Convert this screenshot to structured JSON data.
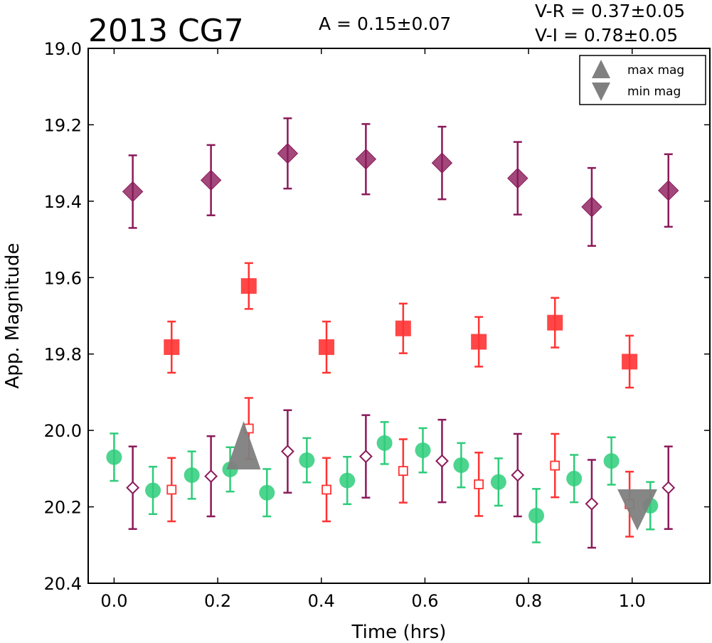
{
  "title": "2013 CG7",
  "amplitude_text": "A  = 0.15±0.07",
  "color_vr_text": "V-R = 0.37±0.05",
  "color_vi_text": "V-I  = 0.78±0.05",
  "chart_data": {
    "type": "scatter",
    "title": "2013 CG7",
    "xlabel": "Time (hrs)",
    "ylabel": "App. Magnitude",
    "xlim": [
      -0.05,
      1.15
    ],
    "ylim": [
      19.0,
      20.4
    ],
    "y_inverted": true,
    "grid": false,
    "x_ticks": [
      "0.0",
      "0.2",
      "0.4",
      "0.6",
      "0.8",
      "1.0"
    ],
    "y_ticks": [
      "19.0",
      "19.2",
      "19.4",
      "19.6",
      "19.8",
      "20.0",
      "20.2",
      "20.4"
    ],
    "series": [
      {
        "marker": "diamond-filled",
        "color": "#8b1a5a",
        "x": [
          0.036,
          0.187,
          0.335,
          0.486,
          0.633,
          0.779,
          0.922,
          1.07
        ],
        "y": [
          19.375,
          19.345,
          19.275,
          19.29,
          19.3,
          19.34,
          19.415,
          19.372
        ],
        "err": [
          0.095,
          0.092,
          0.092,
          0.092,
          0.095,
          0.095,
          0.102,
          0.095
        ]
      },
      {
        "marker": "square-filled",
        "color": "#ff3333",
        "x": [
          0.111,
          0.26,
          0.41,
          0.558,
          0.704,
          0.851,
          0.995
        ],
        "y": [
          19.782,
          19.622,
          19.782,
          19.733,
          19.768,
          19.718,
          19.82
        ],
        "err": [
          0.067,
          0.06,
          0.067,
          0.065,
          0.065,
          0.065,
          0.068
        ]
      },
      {
        "marker": "circle-filled",
        "color": "#2ecc7a",
        "x": [
          0.0,
          0.075,
          0.15,
          0.224,
          0.295,
          0.372,
          0.45,
          0.522,
          0.596,
          0.67,
          0.742,
          0.815,
          0.888,
          0.96,
          1.035
        ],
        "y": [
          20.07,
          20.157,
          20.117,
          20.102,
          20.163,
          20.078,
          20.131,
          20.033,
          20.052,
          20.091,
          20.135,
          20.223,
          20.126,
          20.08,
          20.197
        ],
        "err": [
          0.062,
          0.062,
          0.062,
          0.058,
          0.062,
          0.058,
          0.062,
          0.055,
          0.058,
          0.058,
          0.062,
          0.07,
          0.062,
          0.062,
          0.062
        ]
      },
      {
        "marker": "diamond-open",
        "color": "#8b1a5a",
        "x": [
          0.036,
          0.187,
          0.335,
          0.486,
          0.633,
          0.779,
          0.922,
          1.07
        ],
        "y": [
          20.15,
          20.12,
          20.055,
          20.068,
          20.08,
          20.117,
          20.192,
          20.15
        ],
        "err": [
          0.108,
          0.105,
          0.108,
          0.108,
          0.108,
          0.108,
          0.115,
          0.108
        ]
      },
      {
        "marker": "square-open",
        "color": "#ff3333",
        "x": [
          0.111,
          0.26,
          0.41,
          0.558,
          0.704,
          0.851,
          0.995
        ],
        "y": [
          20.155,
          19.995,
          20.155,
          20.106,
          20.141,
          20.092,
          20.193
        ],
        "err": [
          0.083,
          0.08,
          0.083,
          0.083,
          0.083,
          0.083,
          0.085
        ]
      }
    ],
    "extrema": [
      {
        "name": "max mag",
        "marker": "triangle-up",
        "color": "#808080",
        "x": 0.25,
        "y": 20.05
      },
      {
        "name": "min mag",
        "marker": "triangle-down",
        "color": "#808080",
        "x": 1.01,
        "y": 20.18
      }
    ],
    "legend": {
      "placement": "top-right",
      "entries": [
        {
          "label": "max mag",
          "marker": "triangle-up",
          "color": "#808080"
        },
        {
          "label": "min mag",
          "marker": "triangle-down",
          "color": "#808080"
        }
      ]
    }
  }
}
